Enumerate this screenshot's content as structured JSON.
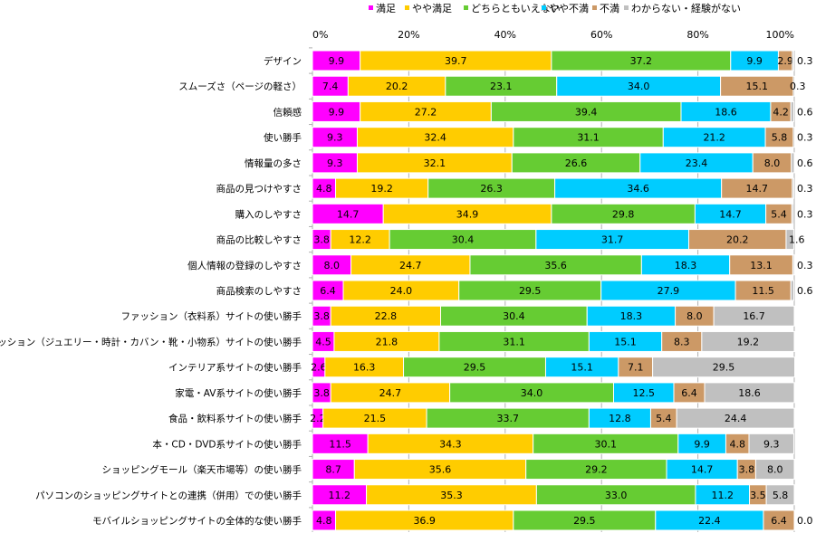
{
  "chart_data": {
    "type": "bar",
    "orientation": "horizontal",
    "stacked": "percent",
    "xlim": [
      0,
      100
    ],
    "xticks": [
      "0%",
      "20%",
      "40%",
      "60%",
      "80%",
      "100%"
    ],
    "legend_position": "top-right",
    "grid": true,
    "series": [
      {
        "name": "満足",
        "color": "#ff00ff"
      },
      {
        "name": "やや満足",
        "color": "#ffcc00"
      },
      {
        "name": "どちらともいえない",
        "color": "#66cc33"
      },
      {
        "name": "やや不満",
        "color": "#00ccff"
      },
      {
        "name": "不満",
        "color": "#cc9966"
      },
      {
        "name": "わからない・経験がない",
        "color": "#c0c0c0"
      }
    ],
    "categories": [
      "デザイン",
      "スムーズさ（ページの軽さ）",
      "信頼感",
      "使い勝手",
      "情報量の多さ",
      "商品の見つけやすさ",
      "購入のしやすさ",
      "商品の比較しやすさ",
      "個人情報の登録のしやすさ",
      "商品検索のしやすさ",
      "ファッション（衣料系）サイトの使い勝手",
      "ファッション（ジュエリー・時計・カバン・靴・小物系）サイトの使い勝手",
      "インテリア系サイトの使い勝手",
      "家電・AV系サイトの使い勝手",
      "食品・飲料系サイトの使い勝手",
      "本・CD・DVD系サイトの使い勝手",
      "ショッピングモール（楽天市場等）の使い勝手",
      "パソコンのショッピングサイトとの連携（併用）での使い勝手",
      "モバイルショッピングサイトの全体的な使い勝手"
    ],
    "values": [
      [
        9.9,
        39.7,
        37.2,
        9.9,
        2.9,
        0.3
      ],
      [
        7.4,
        20.2,
        23.1,
        34.0,
        15.1,
        0.3
      ],
      [
        9.9,
        27.2,
        39.4,
        18.6,
        4.2,
        0.6
      ],
      [
        9.3,
        32.4,
        31.1,
        21.2,
        5.8,
        0.3
      ],
      [
        9.3,
        32.1,
        26.6,
        23.4,
        8.0,
        0.6
      ],
      [
        4.8,
        19.2,
        26.3,
        34.6,
        14.7,
        0.3
      ],
      [
        14.7,
        34.9,
        29.8,
        14.7,
        5.4,
        0.3
      ],
      [
        3.8,
        12.2,
        30.4,
        31.7,
        20.2,
        1.6
      ],
      [
        8.0,
        24.7,
        35.6,
        18.3,
        13.1,
        0.3
      ],
      [
        6.4,
        24.0,
        29.5,
        27.9,
        11.5,
        0.6
      ],
      [
        3.8,
        22.8,
        30.4,
        18.3,
        8.0,
        16.7
      ],
      [
        4.5,
        21.8,
        31.1,
        15.1,
        8.3,
        19.2
      ],
      [
        2.6,
        16.3,
        29.5,
        15.1,
        7.1,
        29.5
      ],
      [
        3.8,
        24.7,
        34.0,
        12.5,
        6.4,
        18.6
      ],
      [
        2.2,
        21.5,
        33.7,
        12.8,
        5.4,
        24.4
      ],
      [
        11.5,
        34.3,
        30.1,
        9.9,
        4.8,
        9.3
      ],
      [
        8.7,
        35.6,
        29.2,
        14.7,
        3.8,
        8.0
      ],
      [
        11.2,
        35.3,
        33.0,
        11.2,
        3.5,
        5.8
      ],
      [
        4.8,
        36.9,
        29.5,
        22.4,
        6.4,
        0.0
      ]
    ]
  }
}
